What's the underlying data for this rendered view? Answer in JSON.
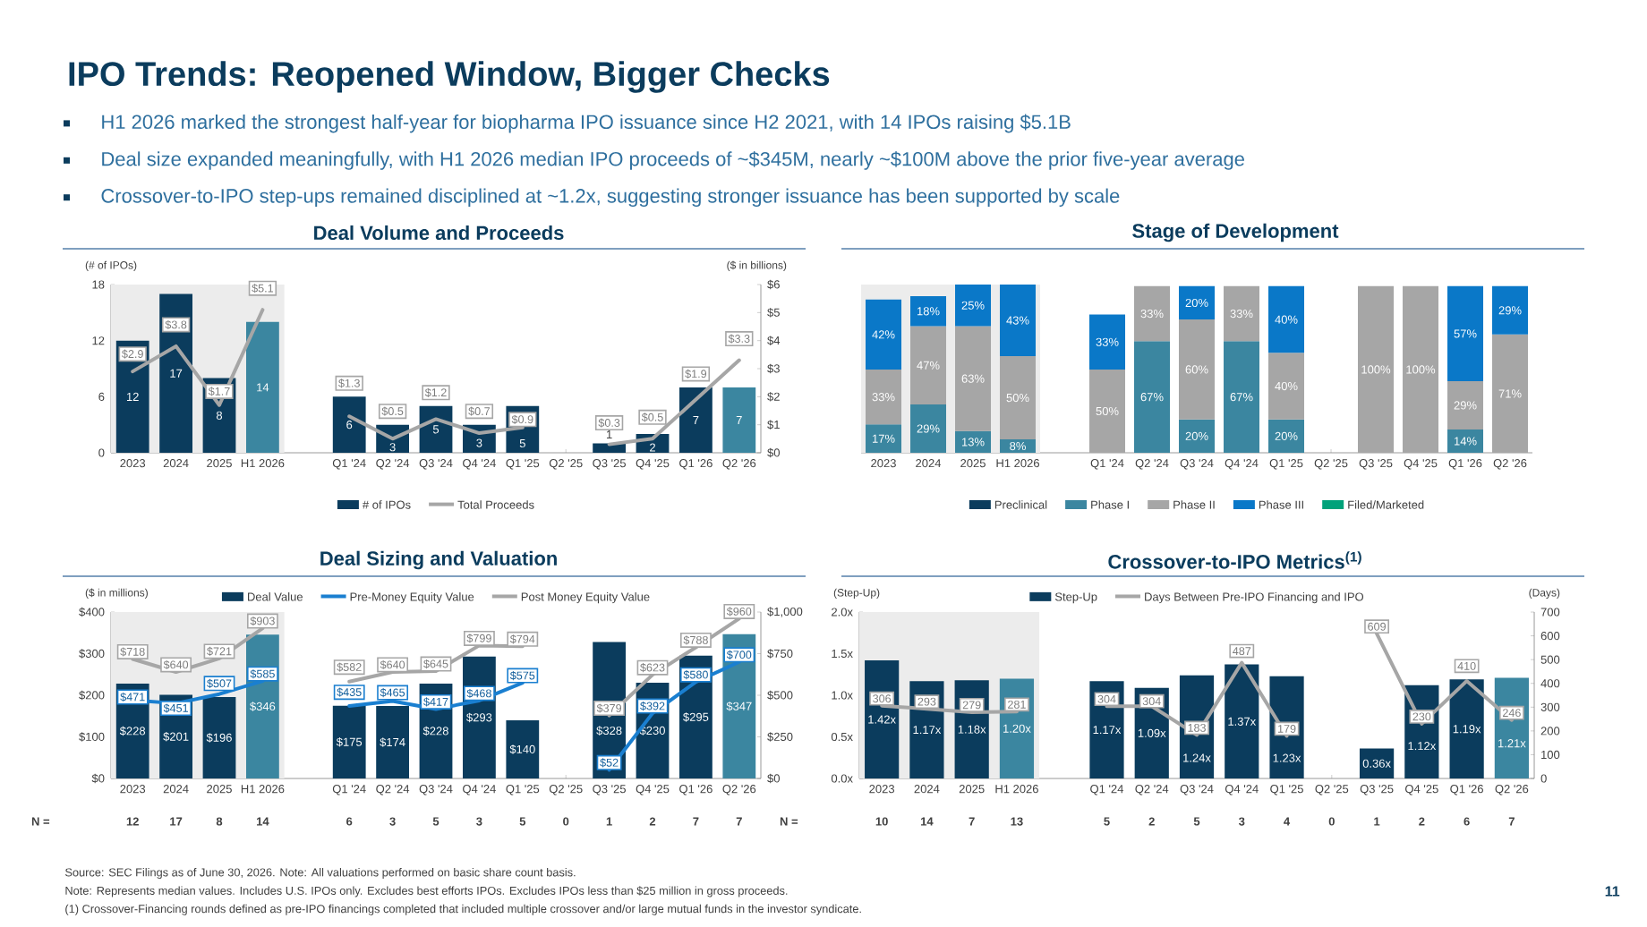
{
  "chart_data": [
    {
      "type": "bar",
      "title": "Deal Volume and Proceeds",
      "ylabel": "(# of IPOs)",
      "y2label": "($ in billions)",
      "categories": [
        "2023",
        "2024",
        "2025",
        "H1 2026",
        null,
        "Q1 '24",
        "Q2 '24",
        "Q3 '24",
        "Q4 '24",
        "Q1 '25",
        "Q2 '25",
        "Q3 '25",
        "Q4 '25",
        "Q1 '26",
        "Q2 '26"
      ],
      "series": [
        {
          "name": "# of IPOs",
          "type": "bar",
          "colors": [
            "#0b3c5d",
            "#0b3c5d",
            "#0b3c5d",
            "#3b86a0",
            null,
            "#0b3c5d",
            "#0b3c5d",
            "#0b3c5d",
            "#0b3c5d",
            "#0b3c5d",
            null,
            "#0b3c5d",
            "#0b3c5d",
            "#0b3c5d",
            "#3b86a0"
          ],
          "values": [
            12,
            17,
            8,
            14,
            null,
            6,
            3,
            5,
            3,
            5,
            null,
            1,
            2,
            7,
            7
          ],
          "value_labels": [
            "12",
            "17",
            "8",
            "14",
            null,
            "6",
            "3",
            "5",
            "3",
            "5",
            null,
            "1",
            "2",
            "7",
            "7"
          ]
        },
        {
          "name": "Total Proceeds",
          "type": "line",
          "axis": "y2",
          "color": "#a6a6a6",
          "values": [
            2.9,
            3.8,
            1.7,
            5.1,
            null,
            1.3,
            0.5,
            1.2,
            0.7,
            0.9,
            null,
            0.3,
            0.5,
            1.9,
            3.3
          ],
          "value_labels": [
            "$2.9",
            "$3.8",
            "$1.7",
            "$5.1",
            null,
            "$1.3",
            "$0.5",
            "$1.2",
            "$0.7",
            "$0.9",
            null,
            "$0.3",
            "$0.5",
            "$1.9",
            "$3.3"
          ]
        }
      ],
      "ylim": [
        0,
        18
      ],
      "yticks": [
        0,
        6,
        12,
        18
      ],
      "y2lim": [
        0,
        6
      ],
      "y2ticks": [
        {
          "value": 0,
          "label": "$0"
        },
        {
          "value": 1,
          "label": "$1"
        },
        {
          "value": 2,
          "label": "$2"
        },
        {
          "value": 3,
          "label": "$3"
        },
        {
          "value": 4,
          "label": "$4"
        },
        {
          "value": 5,
          "label": "$5"
        },
        {
          "value": 6,
          "label": "$6"
        }
      ],
      "legend": "bottom",
      "bands": [
        {
          "axis": "x",
          "from": "2023",
          "to": "H1 2026",
          "color": "#ececec"
        }
      ],
      "annotations": [
        "IPO Trends: Reopened Window, Bigger Checks",
        "H1 2026 marked the strongest half-year for biopharma IPO issuance since H2 2021, with 14 IPOs raising $5.1B",
        "Deal size expanded meaningfully, with H1 2026 median IPO proceeds of ~$345M, nearly ~$100M above the prior five-year average",
        "Crossover-to-IPO step-ups remained disciplined at ~1.2x, suggesting stronger issuance has been supported by scale",
        "Source: SEC Filings as of June 30, 2026. Note: All valuations performed on basic share count basis.",
        "Note: Represents median values. Includes U.S. IPOs only. Excludes best efforts IPOs. Excludes IPOs less than $25 million in gross proceeds.",
        "(1) Crossover-Financing rounds defined as pre-IPO financings completed that included multiple crossover and/or large mutual funds in the investor syndicate.",
        "11"
      ]
    },
    {
      "type": "bar",
      "title": "Stage of Development",
      "stacked": true,
      "tick_labels": "x",
      "categories": [
        "2023",
        "2024",
        "2025",
        "H1 2026",
        null,
        "Q1 '24",
        "Q2 '24",
        "Q3 '24",
        "Q4 '24",
        "Q1 '25",
        "Q2 '25",
        "Q3 '25",
        "Q4 '25",
        "Q1 '26",
        "Q2 '26"
      ],
      "series": [
        {
          "name": "Preclinical",
          "color": "#0b3c5d",
          "values": [
            null,
            null,
            null,
            null,
            null,
            null,
            null,
            null,
            null,
            null,
            null,
            null,
            null,
            null,
            null
          ]
        },
        {
          "name": "Phase I",
          "color": "#3b86a0",
          "values": [
            17,
            29,
            13,
            8,
            null,
            null,
            67,
            20,
            67,
            20,
            null,
            null,
            null,
            14,
            null
          ],
          "value_labels": [
            "17%",
            "29%",
            "13%",
            "8%",
            null,
            null,
            "67%",
            "20%",
            "67%",
            "20%",
            null,
            null,
            null,
            "14%",
            null
          ]
        },
        {
          "name": "Phase II",
          "color": "#a6a6a6",
          "values": [
            33,
            47,
            63,
            50,
            null,
            50,
            33,
            60,
            33,
            40,
            null,
            100,
            100,
            29,
            71
          ],
          "value_labels": [
            "33%",
            "47%",
            "63%",
            "50%",
            null,
            "50%",
            "33%",
            "60%",
            "33%",
            "40%",
            null,
            "100%",
            "100%",
            "29%",
            "71%"
          ]
        },
        {
          "name": "Phase III",
          "color": "#0a78c8",
          "values": [
            42,
            18,
            25,
            43,
            null,
            33,
            null,
            20,
            null,
            40,
            null,
            null,
            null,
            57,
            29
          ],
          "value_labels": [
            "42%",
            "18%",
            "25%",
            "43%",
            null,
            "33%",
            null,
            "20%",
            null,
            "40%",
            null,
            null,
            null,
            "57%",
            "29%"
          ]
        },
        {
          "name": "Filed/Marketed",
          "color": "#00a27a",
          "values": [
            null,
            null,
            null,
            null,
            null,
            null,
            null,
            null,
            null,
            null,
            null,
            null,
            null,
            null,
            null
          ]
        }
      ],
      "ylim": [
        0,
        101
      ],
      "legend": "bottom",
      "bands": [
        {
          "axis": "x",
          "from": "2023",
          "to": "H1 2026",
          "color": "#ececec"
        }
      ]
    },
    {
      "type": "bar",
      "title": "Deal Sizing and Valuation",
      "ylabel": "($ in millions)",
      "categories": [
        "2023",
        "2024",
        "2025",
        "H1 2026",
        null,
        "Q1 '24",
        "Q2 '24",
        "Q3 '24",
        "Q4 '24",
        "Q1 '25",
        "Q2 '25",
        "Q3 '25",
        "Q4 '25",
        "Q1 '26",
        "Q2 '26"
      ],
      "series": [
        {
          "name": "Deal Value",
          "type": "bar",
          "colors": [
            "#0b3c5d",
            "#0b3c5d",
            "#0b3c5d",
            "#3b86a0",
            null,
            "#0b3c5d",
            "#0b3c5d",
            "#0b3c5d",
            "#0b3c5d",
            "#0b3c5d",
            null,
            "#0b3c5d",
            "#0b3c5d",
            "#0b3c5d",
            "#3b86a0"
          ],
          "values": [
            228,
            201,
            196,
            346,
            null,
            175,
            174,
            228,
            293,
            140,
            null,
            328,
            230,
            295,
            347
          ],
          "value_labels": [
            "$228",
            "$201",
            "$196",
            "$346",
            null,
            "$175",
            "$174",
            "$228",
            "$293",
            "$140",
            null,
            "$328",
            "$230",
            "$295",
            "$347"
          ]
        },
        {
          "name": "Pre-Money Equity Value",
          "type": "line",
          "axis": "y2",
          "color": "#1a7fd0",
          "values": [
            471,
            451,
            507,
            585,
            null,
            435,
            465,
            417,
            468,
            575,
            null,
            52,
            392,
            580,
            700
          ],
          "value_labels": [
            "$471",
            "$451",
            "$507",
            "$585",
            null,
            "$435",
            "$465",
            "$417",
            "$468",
            "$575",
            null,
            "$52",
            "$392",
            "$580",
            "$700"
          ]
        },
        {
          "name": "Post Money Equity Value",
          "type": "line",
          "axis": "y2",
          "color": "#a6a6a6",
          "values": [
            718,
            640,
            721,
            903,
            null,
            582,
            640,
            645,
            799,
            794,
            null,
            379,
            623,
            788,
            960
          ],
          "value_labels": [
            "$718",
            "$640",
            "$721",
            "$903",
            null,
            "$582",
            "$640",
            "$645",
            "$799",
            "$794",
            null,
            "$379",
            "$623",
            "$788",
            "$960"
          ]
        }
      ],
      "ylim": [
        0,
        400
      ],
      "yticks": [
        {
          "value": 0,
          "label": "$0"
        },
        {
          "value": 100,
          "label": "$100"
        },
        {
          "value": 200,
          "label": "$200"
        },
        {
          "value": 300,
          "label": "$300"
        },
        {
          "value": 400,
          "label": "$400"
        }
      ],
      "y2lim": [
        0,
        1000
      ],
      "y2ticks": [
        {
          "value": 0,
          "label": "$0"
        },
        {
          "value": 250,
          "label": "$250"
        },
        {
          "value": 500,
          "label": "$500"
        },
        {
          "value": 750,
          "label": "$750"
        },
        {
          "value": 1000,
          "label": "$1,000"
        }
      ],
      "legend": "top",
      "bands": [
        {
          "axis": "x",
          "from": "2023",
          "to": "H1 2026",
          "color": "#ececec"
        }
      ],
      "annotations": [
        "N =",
        "12",
        "17",
        "8",
        "14",
        "6",
        "3",
        "5",
        "3",
        "5",
        "0",
        "1",
        "2",
        "7",
        "7"
      ]
    },
    {
      "type": "bar",
      "title": "Crossover-to-IPO Metrics$^{(1)}$",
      "ylabel": "(Step-Up)",
      "y2label": "(Days)",
      "categories": [
        "2023",
        "2024",
        "2025",
        "H1 2026",
        null,
        "Q1 '24",
        "Q2 '24",
        "Q3 '24",
        "Q4 '24",
        "Q1 '25",
        "Q2 '25",
        "Q3 '25",
        "Q4 '25",
        "Q1 '26",
        "Q2 '26"
      ],
      "series": [
        {
          "name": "Step-Up",
          "type": "bar",
          "colors": [
            "#0b3c5d",
            "#0b3c5d",
            "#0b3c5d",
            "#3b86a0",
            null,
            "#0b3c5d",
            "#0b3c5d",
            "#0b3c5d",
            "#0b3c5d",
            "#0b3c5d",
            null,
            "#0b3c5d",
            "#0b3c5d",
            "#0b3c5d",
            "#3b86a0"
          ],
          "values": [
            1.42,
            1.17,
            1.18,
            1.2,
            null,
            1.17,
            1.09,
            1.24,
            1.37,
            1.23,
            null,
            0.36,
            1.12,
            1.19,
            1.21
          ],
          "value_labels": [
            "1.42x",
            "1.17x",
            "1.18x",
            "1.20x",
            null,
            "1.17x",
            "1.09x",
            "1.24x",
            "1.37x",
            "1.23x",
            null,
            "0.36x",
            "1.12x",
            "1.19x",
            "1.21x"
          ]
        },
        {
          "name": "Days Between Pre-IPO Financing and IPO",
          "type": "line",
          "axis": "y2",
          "color": "#a6a6a6",
          "values": [
            306,
            293,
            279,
            281,
            null,
            304,
            304,
            183,
            487,
            179,
            null,
            609,
            230,
            410,
            246
          ],
          "value_labels": [
            "306",
            "293",
            "279",
            "281",
            null,
            "304",
            "304",
            "183",
            "487",
            "179",
            null,
            "609",
            "230",
            "410",
            "246"
          ]
        }
      ],
      "ylim": [
        0,
        2
      ],
      "yticks": [
        {
          "value": 0,
          "label": "0.0x"
        },
        {
          "value": 0.5,
          "label": "0.5x"
        },
        {
          "value": 1,
          "label": "1.0x"
        },
        {
          "value": 1.5,
          "label": "1.5x"
        },
        {
          "value": 2,
          "label": "2.0x"
        }
      ],
      "y2lim": [
        0,
        700
      ],
      "y2ticks": [
        0,
        100,
        200,
        300,
        400,
        500,
        600,
        700
      ],
      "legend": "top",
      "bands": [
        {
          "axis": "x",
          "from": "2023",
          "to": "H1 2026",
          "color": "#ececec"
        }
      ],
      "annotations": [
        "N =",
        "10",
        "14",
        "7",
        "13",
        "5",
        "2",
        "5",
        "3",
        "4",
        "0",
        "1",
        "2",
        "6",
        "7"
      ]
    }
  ]
}
